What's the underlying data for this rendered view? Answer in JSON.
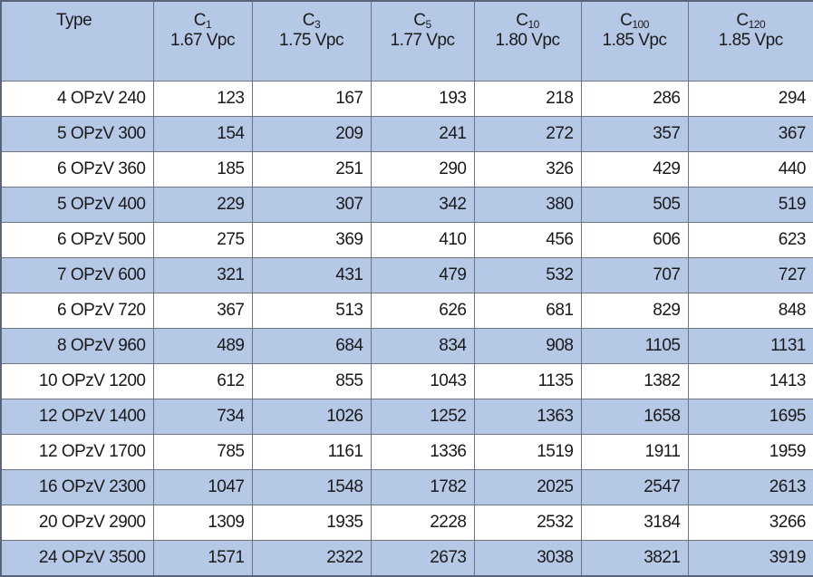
{
  "table": {
    "header": [
      {
        "text": "Type"
      },
      {
        "base": "C",
        "sub": "1",
        "voltage": "1.67 Vpc"
      },
      {
        "base": "C",
        "sub": "3",
        "voltage": "1.75 Vpc"
      },
      {
        "base": "C",
        "sub": "5",
        "voltage": "1.77 Vpc"
      },
      {
        "base": "C",
        "sub": "10",
        "voltage": "1.80 Vpc"
      },
      {
        "base": "C",
        "sub": "100",
        "voltage": "1.85 Vpc"
      },
      {
        "base": "C",
        "sub": "120",
        "voltage": "1.85 Vpc"
      }
    ],
    "rows": [
      [
        "4 OPzV 240",
        123,
        167,
        193,
        218,
        286,
        294
      ],
      [
        "5 OPzV 300",
        154,
        209,
        241,
        272,
        357,
        367
      ],
      [
        "6 OPzV 360",
        185,
        251,
        290,
        326,
        429,
        440
      ],
      [
        "5 OPzV 400",
        229,
        307,
        342,
        380,
        505,
        519
      ],
      [
        "6 OPzV 500",
        275,
        369,
        410,
        456,
        606,
        623
      ],
      [
        "7 OPzV 600",
        321,
        431,
        479,
        532,
        707,
        727
      ],
      [
        "6 OPzV 720",
        367,
        513,
        626,
        681,
        829,
        848
      ],
      [
        "8 OPzV 960",
        489,
        684,
        834,
        908,
        1105,
        1131
      ],
      [
        "10 OPzV 1200",
        612,
        855,
        1043,
        1135,
        1382,
        1413
      ],
      [
        "12 OPzV 1400",
        734,
        1026,
        1252,
        1363,
        1658,
        1695
      ],
      [
        "12 OPzV 1700",
        785,
        1161,
        1336,
        1519,
        1911,
        1959
      ],
      [
        "16 OPzV 2300",
        1047,
        1548,
        1782,
        2025,
        2547,
        2613
      ],
      [
        "20 OPzV 2900",
        1309,
        1935,
        2228,
        2532,
        3184,
        3266
      ],
      [
        "24 OPzV 3500",
        1571,
        2322,
        2673,
        3038,
        3821,
        3919
      ]
    ]
  }
}
